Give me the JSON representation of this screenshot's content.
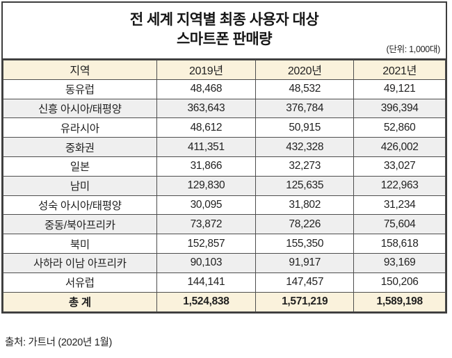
{
  "title": {
    "line1": "전 세계 지역별 최종 사용자 대상",
    "line2": "스마트폰 판매량",
    "unit_note": "(단위: 1,000대)"
  },
  "table": {
    "columns": [
      "지역",
      "2019년",
      "2020년",
      "2021년"
    ],
    "rows": [
      [
        "동유럽",
        "48,468",
        "48,532",
        "49,121"
      ],
      [
        "신흥 아시아/태평양",
        "363,643",
        "376,784",
        "396,394"
      ],
      [
        "유라시아",
        "48,612",
        "50,915",
        "52,860"
      ],
      [
        "중화권",
        "411,351",
        "432,328",
        "426,002"
      ],
      [
        "일본",
        "31,866",
        "32,273",
        "33,027"
      ],
      [
        "남미",
        "129,830",
        "125,635",
        "122,963"
      ],
      [
        "성숙 아시아/태평양",
        "30,095",
        "31,802",
        "31,234"
      ],
      [
        "중동/북아프리카",
        "73,872",
        "78,226",
        "75,604"
      ],
      [
        "북미",
        "152,857",
        "155,350",
        "158,618"
      ],
      [
        "사하라 이남 아프리카",
        "90,103",
        "91,917",
        "93,169"
      ],
      [
        "서유럽",
        "144,141",
        "147,457",
        "150,206"
      ]
    ],
    "total": [
      "총 계",
      "1,524,838",
      "1,571,219",
      "1,589,198"
    ]
  },
  "source": "출처: 가트너 (2020년 1월)",
  "colors": {
    "header_bg": "#faf2dc",
    "total_bg": "#faf2dc",
    "alt_row_bg": "#efefef",
    "border": "#4d4d4d",
    "outer_border": "#3c3c3c",
    "text": "#1f1f1f"
  },
  "chart_data": {
    "type": "table",
    "title": "전 세계 지역별 최종 사용자 대상 스마트폰 판매량",
    "unit": "1,000대",
    "categories": [
      "동유럽",
      "신흥 아시아/태평양",
      "유라시아",
      "중화권",
      "일본",
      "남미",
      "성숙 아시아/태평양",
      "중동/북아프리카",
      "북미",
      "사하라 이남 아프리카",
      "서유럽"
    ],
    "series": [
      {
        "name": "2019년",
        "values": [
          48468,
          363643,
          48612,
          411351,
          31866,
          129830,
          30095,
          73872,
          152857,
          90103,
          144141
        ],
        "total": 1524838
      },
      {
        "name": "2020년",
        "values": [
          48532,
          376784,
          50915,
          432328,
          32273,
          125635,
          31802,
          78226,
          155350,
          91917,
          147457
        ],
        "total": 1571219
      },
      {
        "name": "2021년",
        "values": [
          49121,
          396394,
          52860,
          426002,
          33027,
          122963,
          31234,
          75604,
          158618,
          93169,
          150206
        ],
        "total": 1589198
      }
    ],
    "source": "출처: 가트너 (2020년 1월)"
  }
}
